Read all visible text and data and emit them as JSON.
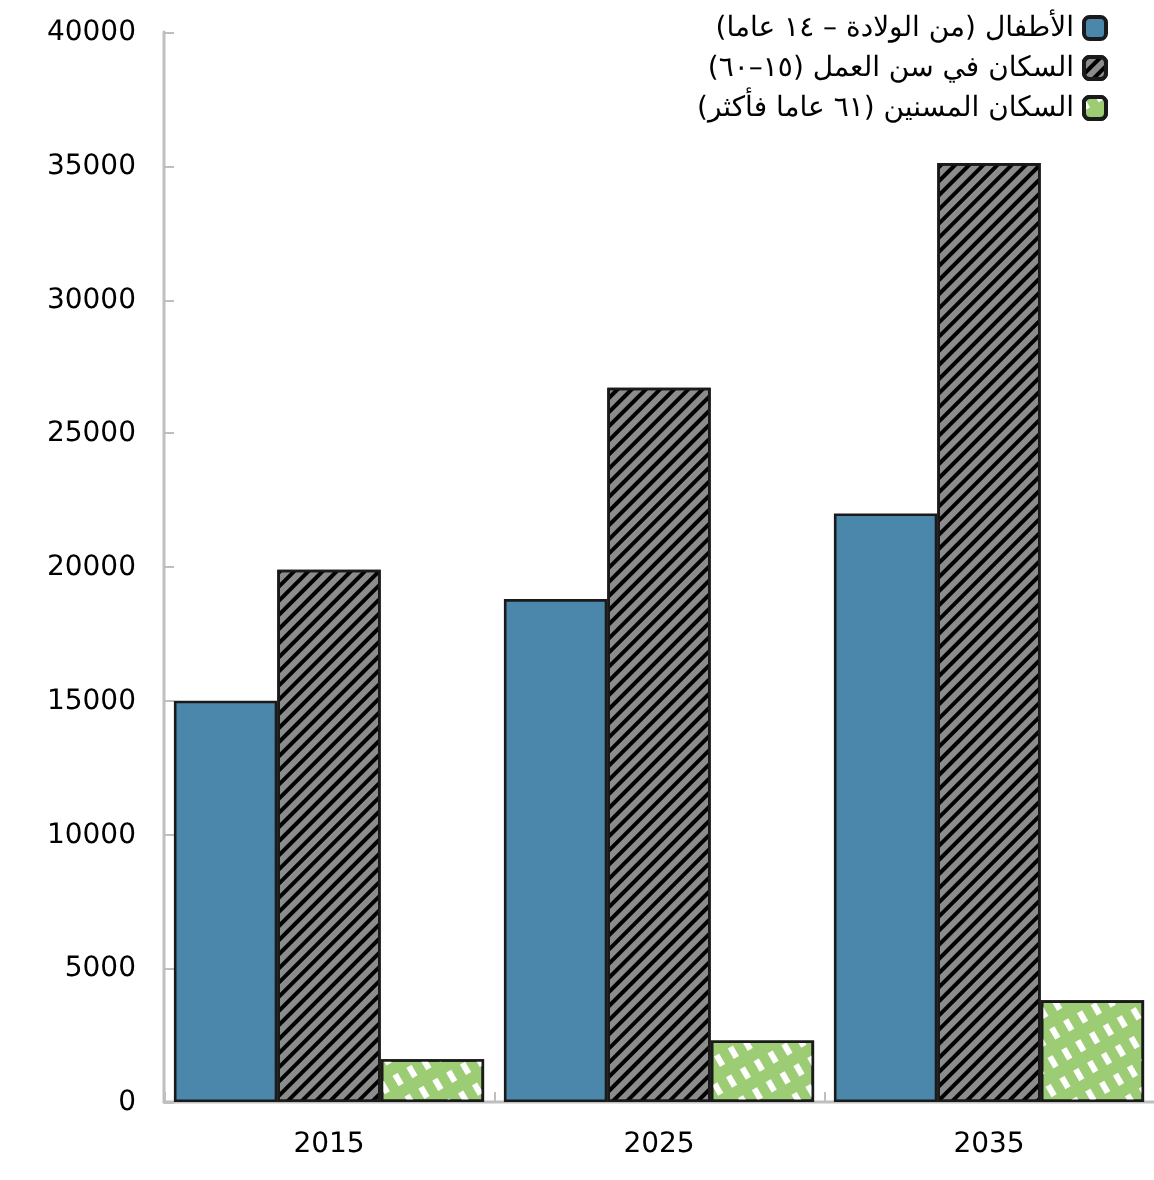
{
  "chart_data": {
    "type": "bar",
    "categories": [
      "2015",
      "2025",
      "2035"
    ],
    "series": [
      {
        "name": "الأطفال (من الولادة – ١٤ عاما)",
        "color": "#4a87aa",
        "values": [
          15000,
          18800,
          22000
        ]
      },
      {
        "name": "السكان في سن العمل (١٥–٦٠)",
        "color": "#8c8c8c",
        "values": [
          19900,
          26700,
          35100
        ]
      },
      {
        "name": "السكان المسنين (٦١ عاما فأكثر)",
        "color": "#9ccc74",
        "values": [
          1600,
          2300,
          3800
        ]
      }
    ],
    "ylim": [
      0,
      40000
    ],
    "yticks": [
      0,
      5000,
      10000,
      15000,
      20000,
      25000,
      30000,
      35000,
      40000
    ],
    "grid": false,
    "legend": "top right"
  }
}
